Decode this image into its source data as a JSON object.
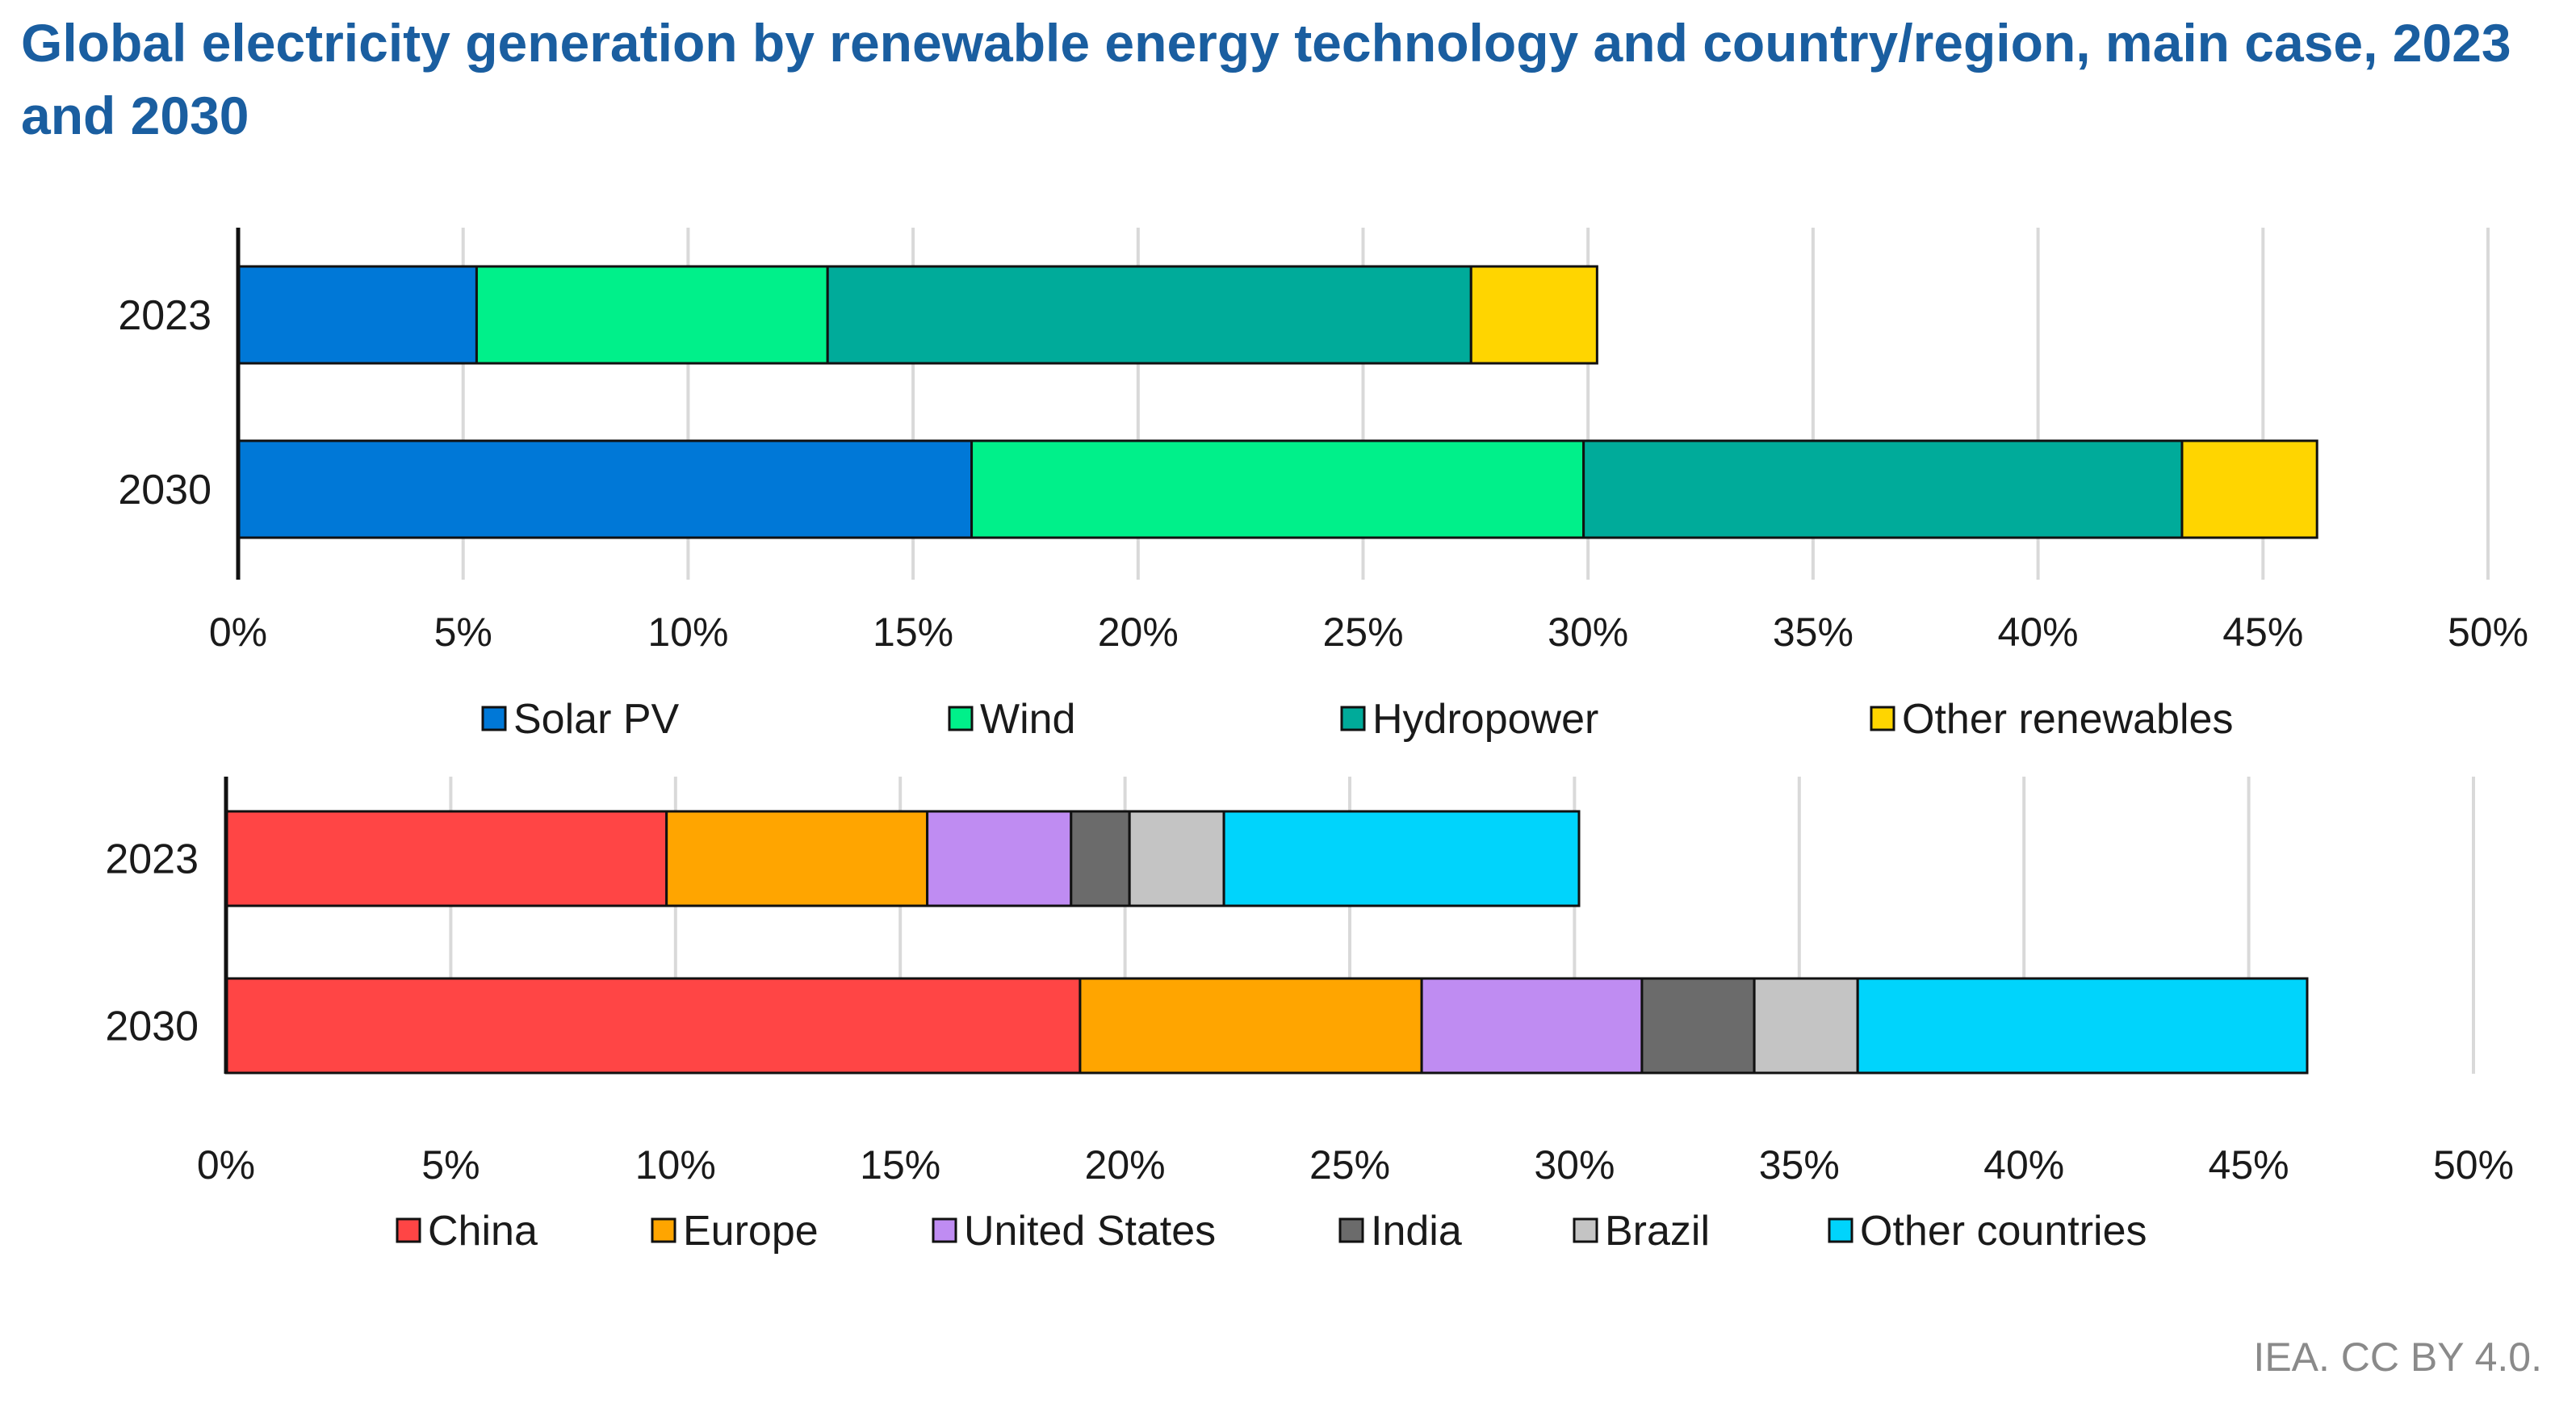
{
  "title": "Global electricity generation by renewable energy technology and country/region, main case, 2023 and 2030",
  "credit": "IEA. CC BY 4.0.",
  "chart_data": [
    {
      "type": "bar",
      "orientation": "horizontal",
      "stacked": true,
      "categories": [
        "2023",
        "2030"
      ],
      "series": [
        {
          "name": "Solar PV",
          "color": "#0078d7",
          "values": [
            5.3,
            16.3
          ]
        },
        {
          "name": "Wind",
          "color": "#00f08a",
          "values": [
            7.8,
            13.6
          ]
        },
        {
          "name": "Hydropower",
          "color": "#00ab9a",
          "values": [
            14.3,
            13.3
          ]
        },
        {
          "name": "Other renewables",
          "color": "#ffd500",
          "values": [
            2.8,
            3.0
          ]
        }
      ],
      "xlim": [
        0,
        50
      ],
      "xticks": [
        "0%",
        "5%",
        "10%",
        "15%",
        "20%",
        "25%",
        "30%",
        "35%",
        "40%",
        "45%",
        "50%"
      ],
      "grid": true,
      "legend": "bottom"
    },
    {
      "type": "bar",
      "orientation": "horizontal",
      "stacked": true,
      "categories": [
        "2023",
        "2030"
      ],
      "series": [
        {
          "name": "China",
          "color": "#ff4545",
          "values": [
            9.8,
            19.0
          ]
        },
        {
          "name": "Europe",
          "color": "#ffa500",
          "values": [
            5.8,
            7.6
          ]
        },
        {
          "name": "United States",
          "color": "#bf8cf2",
          "values": [
            3.2,
            4.9
          ]
        },
        {
          "name": "India",
          "color": "#6b6b6b",
          "values": [
            1.3,
            2.5
          ]
        },
        {
          "name": "Brazil",
          "color": "#c4c4c4",
          "values": [
            2.1,
            2.3
          ]
        },
        {
          "name": "Other countries",
          "color": "#00d4fc",
          "values": [
            7.9,
            10.0
          ]
        }
      ],
      "xlim": [
        0,
        50
      ],
      "xticks": [
        "0%",
        "5%",
        "10%",
        "15%",
        "20%",
        "25%",
        "30%",
        "35%",
        "40%",
        "45%",
        "50%"
      ],
      "grid": true,
      "legend": "bottom"
    }
  ]
}
